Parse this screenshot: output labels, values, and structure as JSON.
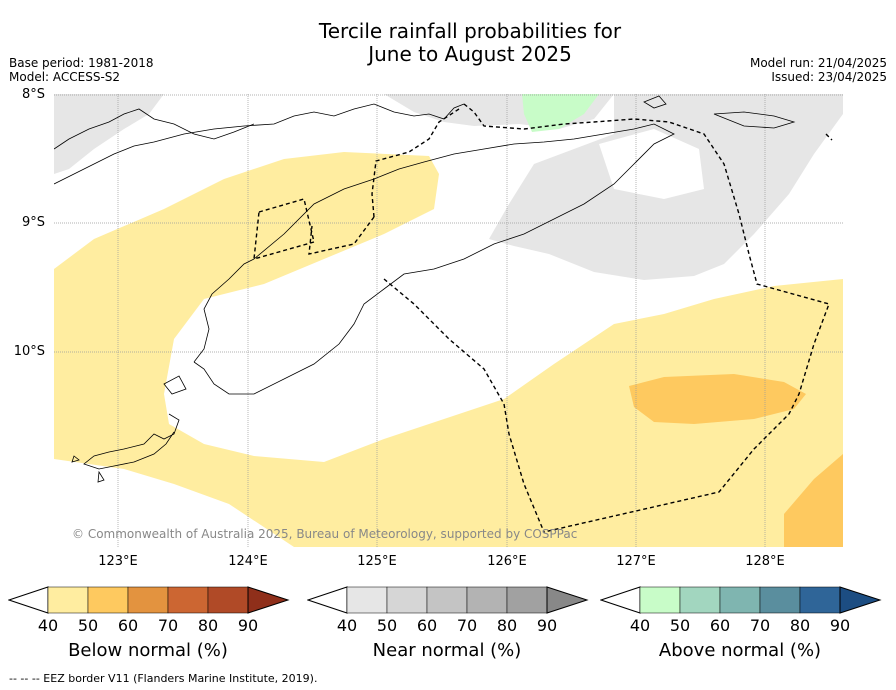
{
  "title_line1": "Tercile rainfall probabilities for",
  "title_line2": "June to August 2025",
  "meta_left": {
    "base_period": "Base period: 1981-2018",
    "model": "Model: ACCESS-S2"
  },
  "meta_right": {
    "model_run": "Model run: 21/04/2025",
    "issued": "Issued: 23/04/2025"
  },
  "lat_labels": [
    "8°S",
    "9°S",
    "10°S"
  ],
  "lon_labels": [
    "123°E",
    "124°E",
    "125°E",
    "126°E",
    "127°E",
    "128°E"
  ],
  "copyright": "© Commonwealth of Australia 2025, Bureau of Meteorology, supported by COSPPac",
  "legends": [
    {
      "label": "Below normal (%)",
      "ticks": [
        "40",
        "50",
        "60",
        "70",
        "80",
        "90"
      ],
      "colors": [
        "#ffeda0",
        "#fec95f",
        "#e3933f",
        "#cc6632",
        "#b04a27",
        "#8f2f1a"
      ]
    },
    {
      "label": "Near normal (%)",
      "ticks": [
        "40",
        "50",
        "60",
        "70",
        "80",
        "90"
      ],
      "colors": [
        "#e6e6e6",
        "#d6d6d6",
        "#c4c4c4",
        "#b3b3b3",
        "#a1a1a1",
        "#888888"
      ]
    },
    {
      "label": "Above normal (%)",
      "ticks": [
        "40",
        "50",
        "60",
        "70",
        "80",
        "90"
      ],
      "colors": [
        "#c8fcc8",
        "#a2d6bf",
        "#7fb5b0",
        "#5a8e9e",
        "#2f6598",
        "#1c4d82"
      ]
    }
  ],
  "footnote": "--  --  -- EEZ border V11 (Flanders Marine Institute, 2019)."
}
